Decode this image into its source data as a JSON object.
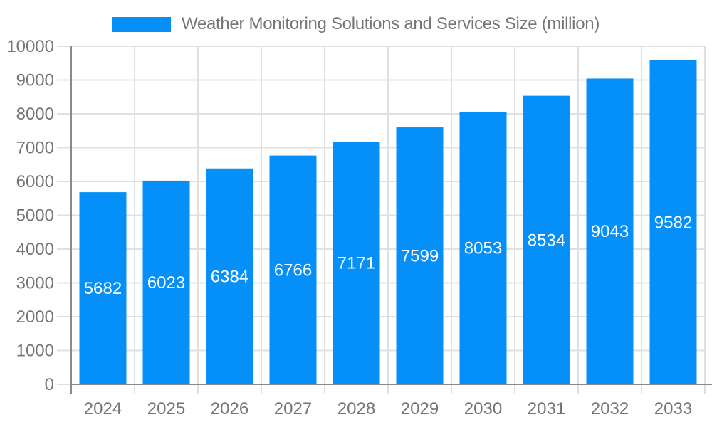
{
  "legend": {
    "label": "Weather Monitoring Solutions and Services Size (million)"
  },
  "chart_data": {
    "type": "bar",
    "title": "Weather Monitoring Solutions and Services Size (million)",
    "categories": [
      "2024",
      "2025",
      "2026",
      "2027",
      "2028",
      "2029",
      "2030",
      "2031",
      "2032",
      "2033"
    ],
    "values": [
      5682,
      6023,
      6384,
      6766,
      7171,
      7599,
      8053,
      8534,
      9043,
      9582
    ],
    "series": [
      {
        "name": "Weather Monitoring Solutions and Services Size (million)",
        "values": [
          5682,
          6023,
          6384,
          6766,
          7171,
          7599,
          8053,
          8534,
          9043,
          9582
        ]
      }
    ],
    "xlabel": "",
    "ylabel": "",
    "ylim": [
      0,
      10000
    ],
    "ytick_step": 1000,
    "yticks": [
      0,
      1000,
      2000,
      3000,
      4000,
      5000,
      6000,
      7000,
      8000,
      9000,
      10000
    ],
    "grid": true,
    "legend_position": "top-center",
    "value_label_position": "inside-center",
    "colors": {
      "bar": "#0590f9",
      "value_label": "#ffffff",
      "axis_text": "#757575",
      "grid_line": "#e0e0e0",
      "axis_line": "#8a8a8a",
      "background": "#ffffff"
    }
  }
}
